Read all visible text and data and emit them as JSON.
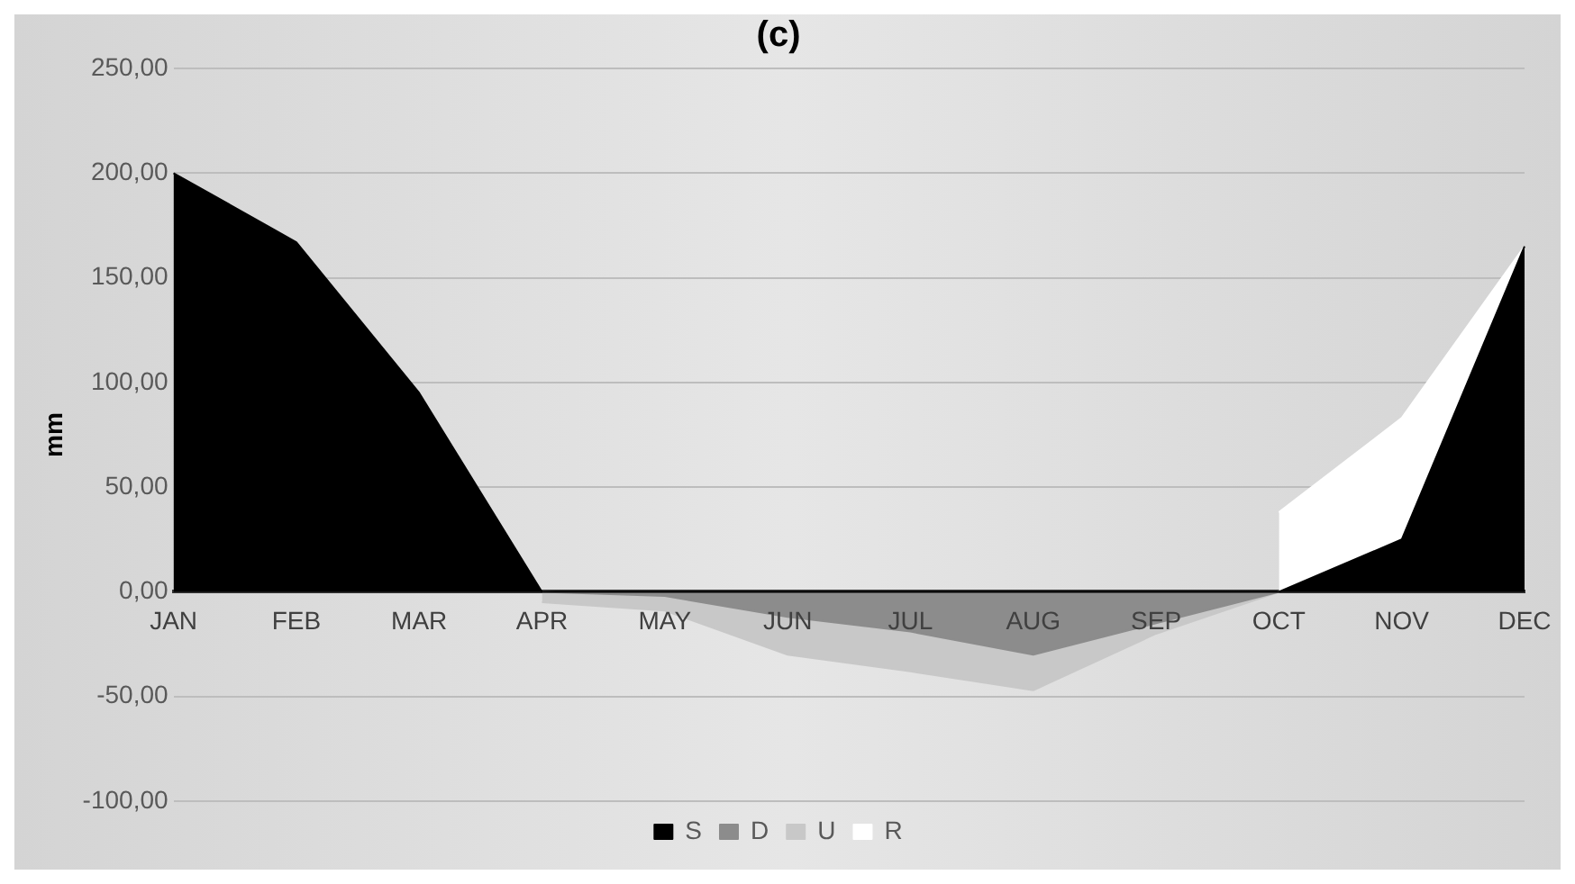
{
  "chart_data": {
    "type": "area",
    "title": "(c)",
    "ylabel": "mm",
    "stacked": true,
    "categories": [
      "JAN",
      "FEB",
      "MAR",
      "APR",
      "MAY",
      "JUN",
      "JUL",
      "AUG",
      "SEP",
      "OCT",
      "NOV",
      "DEC"
    ],
    "series": [
      {
        "name": "S",
        "color": "#000000",
        "values": [
          200,
          167,
          95,
          0,
          0,
          0,
          0,
          0,
          0,
          0,
          25,
          165
        ]
      },
      {
        "name": "D",
        "color": "#8c8c8c",
        "values": [
          null,
          null,
          null,
          0,
          -2,
          -12,
          -19,
          -30,
          -15,
          0,
          null,
          null
        ]
      },
      {
        "name": "U",
        "color": "#c8c8c8",
        "values": [
          null,
          null,
          null,
          -5,
          -7,
          -18,
          -19,
          -17,
          -5,
          0,
          null,
          null
        ]
      },
      {
        "name": "R",
        "color": "#ffffff",
        "values": [
          null,
          null,
          null,
          null,
          null,
          null,
          null,
          null,
          null,
          38,
          58,
          0
        ]
      }
    ],
    "ylim": [
      -100,
      250
    ],
    "yticks": [
      {
        "value": -100,
        "label": "-100,00"
      },
      {
        "value": -50,
        "label": "-50,00"
      },
      {
        "value": 0,
        "label": "0,00"
      },
      {
        "value": 50,
        "label": "50,00"
      },
      {
        "value": 100,
        "label": "100,00"
      },
      {
        "value": 150,
        "label": "150,00"
      },
      {
        "value": 200,
        "label": "200,00"
      },
      {
        "value": 250,
        "label": "250,00"
      }
    ],
    "grid": "y",
    "legend": "bottom"
  }
}
